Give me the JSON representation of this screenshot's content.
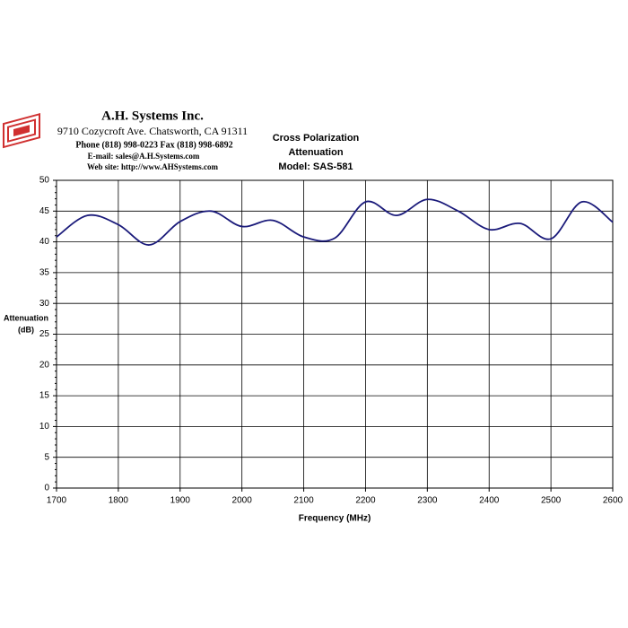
{
  "header": {
    "company": "A.H. Systems Inc.",
    "address": "9710 Cozycroft Ave. Chatsworth, CA 91311",
    "phone": "Phone (818) 998-0223 Fax (818) 998-6892",
    "email": "E-mail:  sales@A.H.Systems.com",
    "website": "Web site:  http://www.AHSystems.com"
  },
  "chart_data": {
    "type": "line",
    "title": [
      "Cross Polarization",
      "Attenuation",
      "Model: SAS-581"
    ],
    "y_label": [
      "Attenuation",
      "(dB)"
    ],
    "x_label": "Frequency (MHz)",
    "x": [
      1700,
      1750,
      1800,
      1850,
      1900,
      1950,
      2000,
      2050,
      2100,
      2150,
      2200,
      2250,
      2300,
      2350,
      2400,
      2450,
      2500,
      2550,
      2600
    ],
    "series": [
      {
        "name": "Cross Polarization",
        "color": "#1a1a7a",
        "values": [
          40.8,
          44.3,
          42.8,
          39.5,
          43.3,
          45.0,
          42.5,
          43.5,
          40.8,
          40.6,
          46.5,
          44.3,
          46.9,
          45.0,
          42.0,
          43.0,
          40.5,
          46.5,
          43.2
        ]
      }
    ],
    "xlim": [
      1700,
      2600
    ],
    "xticks": [
      1700,
      1800,
      1900,
      2000,
      2100,
      2200,
      2300,
      2400,
      2500,
      2600
    ],
    "ylim": [
      0,
      50
    ],
    "yticks": [
      0,
      5,
      10,
      15,
      20,
      25,
      30,
      35,
      40,
      45,
      50
    ],
    "grid": true
  }
}
